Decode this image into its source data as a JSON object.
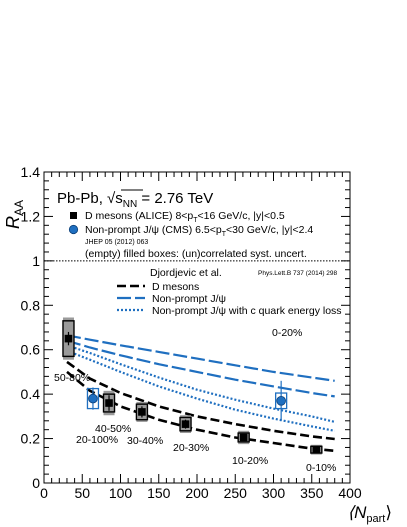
{
  "chart_data": {
    "type": "scatter",
    "title": "",
    "system_label": "Pb-Pb, √s",
    "system_sub": "NN",
    "system_energy": " = 2.76 TeV",
    "ylabel": "R",
    "ylabel_sub": "AA",
    "xlabel": "⟨N",
    "xlabel_sub": "part",
    "xlabel_close": "⟩",
    "xlim": [
      0,
      400
    ],
    "ylim": [
      0,
      1.4
    ],
    "grid": false,
    "x_ticks": [
      "0",
      "50",
      "100",
      "150",
      "200",
      "250",
      "300",
      "350",
      "400"
    ],
    "y_ticks": [
      "0",
      "0.2",
      "0.4",
      "0.6",
      "0.8",
      "1",
      "1.2",
      "1.4"
    ],
    "reference_line_y": 1.0,
    "legend": [
      {
        "text": "D mesons (ALICE) 8<p",
        "sub": "T",
        "rest": "<16 GeV/c, |y|<0.5",
        "marker": "square",
        "color": "#000000"
      },
      {
        "text": "Non-prompt J/ψ (CMS) 6.5<p",
        "sub": "T",
        "rest": "<30 GeV/c, |y|<2.4",
        "marker": "circle",
        "color": "#1f6fc0"
      }
    ],
    "jhep_ref": "JHEP 05 (2012) 063",
    "syst_note": "(empty) filled boxes: (un)correlated syst. uncert.",
    "model_author": "Djordjevic et al.",
    "model_ref": "Phys.Lett.B 737 (2014) 298",
    "model_legend": [
      {
        "text": "D mesons",
        "style": "dash",
        "color": "#000000"
      },
      {
        "text": "Non-prompt J/ψ",
        "style": "longdash",
        "color": "#1f6fc0"
      },
      {
        "text": "Non-prompt J/ψ with c quark energy loss",
        "style": "dot",
        "color": "#1f6fc0"
      }
    ],
    "series": [
      {
        "name": "D mesons (ALICE)",
        "color": "#000000",
        "points": [
          {
            "x": 32,
            "y": 0.65,
            "err": 0.03,
            "corr": 0.095,
            "uncorr": 0.08,
            "label": "50-80%"
          },
          {
            "x": 85,
            "y": 0.36,
            "err": 0.035,
            "corr": 0.055,
            "uncorr": 0.04,
            "label": "40-50%"
          },
          {
            "x": 128,
            "y": 0.32,
            "err": 0.025,
            "corr": 0.045,
            "uncorr": 0.035,
            "label": "30-40%"
          },
          {
            "x": 185,
            "y": 0.265,
            "err": 0.02,
            "corr": 0.04,
            "uncorr": 0.03,
            "label": "20-30%"
          },
          {
            "x": 261,
            "y": 0.205,
            "err": 0.012,
            "corr": 0.03,
            "uncorr": 0.02,
            "label": "10-20%"
          },
          {
            "x": 356,
            "y": 0.15,
            "err": 0.01,
            "corr": 0.022,
            "uncorr": 0.015,
            "label": "0-10%"
          }
        ]
      },
      {
        "name": "Non-prompt J/ψ (CMS)",
        "color": "#1f6fc0",
        "points": [
          {
            "x": 64,
            "y": 0.38,
            "err": 0.05,
            "uncorr": 0.045,
            "label": "20-100%"
          },
          {
            "x": 310,
            "y": 0.37,
            "err": 0.09,
            "uncorr": 0.035,
            "label": "0-20%"
          }
        ]
      }
    ],
    "model_curves": [
      {
        "name": "D mesons",
        "style": "dash",
        "color": "#000000",
        "band": true,
        "x": [
          30,
          60,
          100,
          150,
          200,
          250,
          300,
          350,
          380
        ],
        "y_upper": [
          0.545,
          0.47,
          0.405,
          0.345,
          0.3,
          0.265,
          0.235,
          0.21,
          0.198
        ],
        "y_lower": [
          0.5,
          0.415,
          0.345,
          0.285,
          0.24,
          0.205,
          0.18,
          0.155,
          0.145
        ]
      },
      {
        "name": "Non-prompt J/ψ",
        "style": "longdash",
        "color": "#1f6fc0",
        "band": true,
        "x": [
          30,
          60,
          100,
          150,
          200,
          250,
          300,
          350,
          380
        ],
        "y_upper": [
          0.665,
          0.645,
          0.62,
          0.59,
          0.56,
          0.53,
          0.5,
          0.475,
          0.46
        ],
        "y_lower": [
          0.64,
          0.61,
          0.575,
          0.535,
          0.5,
          0.465,
          0.435,
          0.405,
          0.39
        ]
      },
      {
        "name": "Non-prompt J/ψ with c quark energy loss",
        "style": "dot",
        "color": "#1f6fc0",
        "band": true,
        "x": [
          30,
          60,
          100,
          150,
          200,
          250,
          300,
          350,
          380
        ],
        "y_upper": [
          0.62,
          0.585,
          0.535,
          0.475,
          0.42,
          0.375,
          0.335,
          0.3,
          0.275
        ],
        "y_lower": [
          0.595,
          0.555,
          0.5,
          0.435,
          0.38,
          0.33,
          0.29,
          0.255,
          0.235
        ]
      }
    ]
  }
}
